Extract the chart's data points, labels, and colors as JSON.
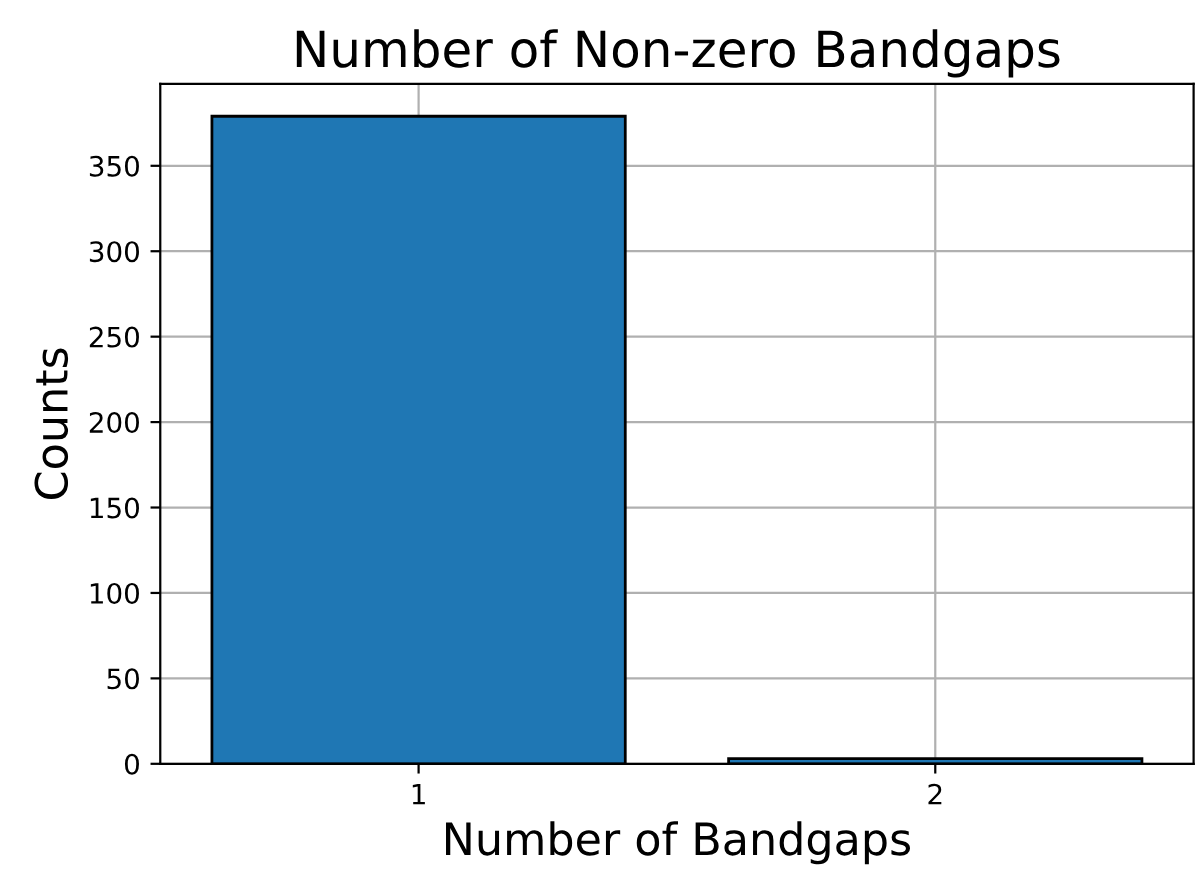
{
  "chart_data": {
    "type": "bar",
    "title": "Number of Non-zero Bandgaps",
    "xlabel": "Number of Bandgaps",
    "ylabel": "Counts",
    "categories": [
      "1",
      "2"
    ],
    "values": [
      379,
      3
    ],
    "color": "#1f77b4",
    "ylim": [
      0,
      398
    ],
    "yticks": [
      0,
      50,
      100,
      150,
      200,
      250,
      300,
      350
    ],
    "grid": true
  }
}
